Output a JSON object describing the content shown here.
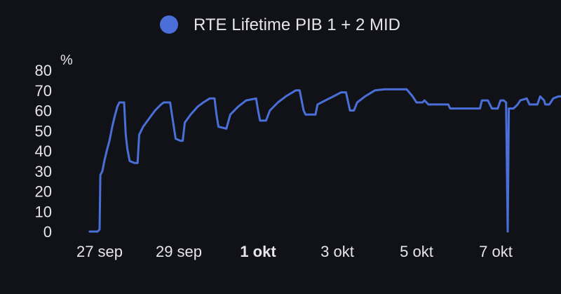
{
  "chart_data": {
    "type": "line",
    "legend": {
      "label": "RTE Lifetime PIB 1 + 2 MID",
      "placement": "top-center",
      "color": "#4a6fd8"
    },
    "y_unit": "%",
    "ylim": [
      0,
      80
    ],
    "y_ticks": [
      "0",
      "10",
      "20",
      "30",
      "40",
      "50",
      "60",
      "70",
      "80"
    ],
    "x_ticks": [
      {
        "label": "27 sep",
        "x": 0,
        "bold": false
      },
      {
        "label": "29 sep",
        "x": 2,
        "bold": false
      },
      {
        "label": "1 okt",
        "x": 4,
        "bold": true
      },
      {
        "label": "3 okt",
        "x": 6,
        "bold": false
      },
      {
        "label": "5 okt",
        "x": 8,
        "bold": false
      },
      {
        "label": "7 okt",
        "x": 10,
        "bold": false
      }
    ],
    "xlim": [
      -0.5,
      11.4
    ],
    "grid": false,
    "x_unit": "days from 27 sep",
    "series": [
      {
        "name": "RTE Lifetime PIB 1 + 2 MID",
        "color": "#4a6fd8",
        "points": [
          [
            -0.25,
            0
          ],
          [
            -0.05,
            0
          ],
          [
            0.0,
            1
          ],
          [
            0.02,
            28
          ],
          [
            0.07,
            30
          ],
          [
            0.12,
            35
          ],
          [
            0.18,
            40
          ],
          [
            0.25,
            45
          ],
          [
            0.32,
            52
          ],
          [
            0.38,
            57
          ],
          [
            0.45,
            62
          ],
          [
            0.5,
            64
          ],
          [
            0.62,
            64
          ],
          [
            0.66,
            48
          ],
          [
            0.7,
            41
          ],
          [
            0.76,
            35
          ],
          [
            0.88,
            34
          ],
          [
            0.96,
            34
          ],
          [
            1.0,
            48
          ],
          [
            1.1,
            52
          ],
          [
            1.25,
            56
          ],
          [
            1.4,
            60
          ],
          [
            1.55,
            63
          ],
          [
            1.62,
            64
          ],
          [
            1.78,
            64
          ],
          [
            1.85,
            55
          ],
          [
            1.92,
            46
          ],
          [
            2.04,
            45
          ],
          [
            2.1,
            45
          ],
          [
            2.15,
            54
          ],
          [
            2.3,
            58
          ],
          [
            2.48,
            62
          ],
          [
            2.62,
            64
          ],
          [
            2.78,
            66
          ],
          [
            2.9,
            66
          ],
          [
            2.95,
            58
          ],
          [
            3.0,
            52
          ],
          [
            3.2,
            51
          ],
          [
            3.3,
            58
          ],
          [
            3.5,
            62
          ],
          [
            3.7,
            65
          ],
          [
            3.95,
            66
          ],
          [
            4.0,
            60
          ],
          [
            4.05,
            55
          ],
          [
            4.2,
            55
          ],
          [
            4.3,
            60
          ],
          [
            4.5,
            64
          ],
          [
            4.7,
            67
          ],
          [
            4.95,
            70
          ],
          [
            5.05,
            70
          ],
          [
            5.15,
            60
          ],
          [
            5.2,
            58
          ],
          [
            5.45,
            58
          ],
          [
            5.5,
            63
          ],
          [
            5.7,
            65
          ],
          [
            5.9,
            67
          ],
          [
            6.1,
            69
          ],
          [
            6.22,
            69
          ],
          [
            6.32,
            60
          ],
          [
            6.42,
            60
          ],
          [
            6.5,
            64
          ],
          [
            6.7,
            67
          ],
          [
            6.95,
            70
          ],
          [
            7.2,
            70.5
          ],
          [
            7.5,
            70.5
          ],
          [
            7.75,
            70.5
          ],
          [
            7.9,
            67
          ],
          [
            8.0,
            64
          ],
          [
            8.15,
            64
          ],
          [
            8.2,
            65
          ],
          [
            8.3,
            63
          ],
          [
            8.5,
            63
          ],
          [
            8.7,
            63
          ],
          [
            8.8,
            63
          ],
          [
            8.85,
            61
          ],
          [
            9.2,
            61
          ],
          [
            9.5,
            61
          ],
          [
            9.6,
            61
          ],
          [
            9.65,
            65
          ],
          [
            9.8,
            65
          ],
          [
            9.9,
            61
          ],
          [
            10.05,
            61
          ],
          [
            10.12,
            65
          ],
          [
            10.2,
            65
          ],
          [
            10.26,
            64
          ],
          [
            10.3,
            0
          ],
          [
            10.33,
            61
          ],
          [
            10.45,
            61
          ],
          [
            10.55,
            63
          ],
          [
            10.62,
            65
          ],
          [
            10.78,
            66
          ],
          [
            10.85,
            63
          ],
          [
            11.05,
            63
          ],
          [
            11.12,
            67
          ],
          [
            11.22,
            65
          ],
          [
            11.25,
            63
          ],
          [
            11.35,
            63
          ],
          [
            11.45,
            66
          ],
          [
            11.58,
            67
          ],
          [
            11.64,
            67
          ]
        ]
      }
    ]
  }
}
